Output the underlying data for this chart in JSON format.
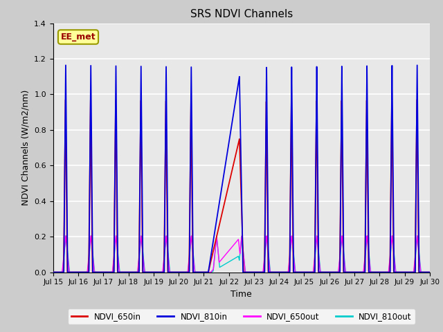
{
  "title": "SRS NDVI Channels",
  "xlabel": "Time",
  "ylabel": "NDVI Channels (W/m2/nm)",
  "ylim": [
    0.0,
    1.4
  ],
  "background_color": "#cccccc",
  "plot_bg_color": "#e8e8e8",
  "annotation_text": "EE_met",
  "annotation_bg": "#ffff99",
  "annotation_border": "#999900",
  "legend_labels": [
    "NDVI_650in",
    "NDVI_810in",
    "NDVI_650out",
    "NDVI_810out"
  ],
  "legend_colors": [
    "#dd0000",
    "#0000dd",
    "#ff00ff",
    "#00cccc"
  ],
  "grid_color": "#ffffff",
  "peak_650in": 0.97,
  "peak_810in": 1.165,
  "peak_650out": 0.205,
  "peak_810out": 0.205,
  "num_days": 15,
  "start_day": 15,
  "figsize": [
    6.4,
    4.8
  ],
  "dpi": 100
}
